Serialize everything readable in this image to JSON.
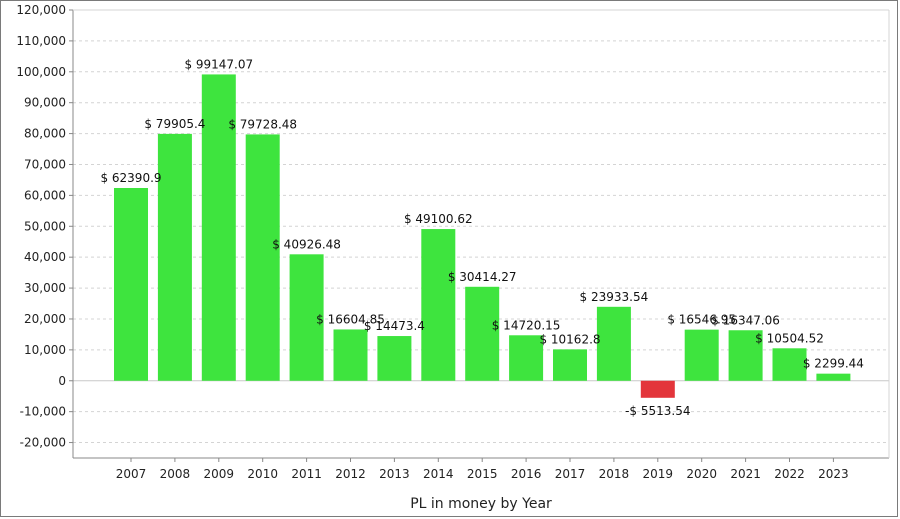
{
  "chart_data": {
    "type": "bar",
    "xlabel": "PL in money by Year",
    "ylabel": "",
    "title": "",
    "ylim": [
      -25000,
      120000
    ],
    "yticks": [
      -20000,
      -10000,
      0,
      10000,
      20000,
      30000,
      40000,
      50000,
      60000,
      70000,
      80000,
      90000,
      100000,
      110000,
      120000
    ],
    "ytick_labels": [
      "-20,000",
      "-10,000",
      "0",
      "10,000",
      "20,000",
      "30,000",
      "40,000",
      "50,000",
      "60,000",
      "70,000",
      "80,000",
      "90,000",
      "100,000",
      "110,000",
      "120,000"
    ],
    "categories": [
      "2007",
      "2008",
      "2009",
      "2010",
      "2011",
      "2012",
      "2013",
      "2014",
      "2015",
      "2016",
      "2017",
      "2018",
      "2019",
      "2020",
      "2021",
      "2022",
      "2023"
    ],
    "values": [
      62390.9,
      79905.4,
      99147.07,
      79728.48,
      40926.48,
      16604.85,
      14473.4,
      49100.62,
      30414.27,
      14720.15,
      10162.8,
      23933.54,
      -5513.54,
      16546.95,
      16347.06,
      10504.52,
      2299.44
    ],
    "data_labels": [
      "$ 62390.9",
      "$ 79905.4",
      "$ 99147.07",
      "$ 79728.48",
      "$ 40926.48",
      "$ 16604.85",
      "$ 14473.4",
      "$ 49100.62",
      "$ 30414.27",
      "$ 14720.15",
      "$ 10162.8",
      "$ 23933.54",
      "-$ 5513.54",
      "$ 16546.95",
      "$ 16347.06",
      "$ 10504.52",
      "$ 2299.44"
    ],
    "grid": true,
    "legend": "none",
    "colors": {
      "positive": "#3ee43e",
      "negative": "#e3353b",
      "grid": "#d4d4d4",
      "axis": "#888888",
      "zero_line": "#c8c8c8"
    }
  }
}
